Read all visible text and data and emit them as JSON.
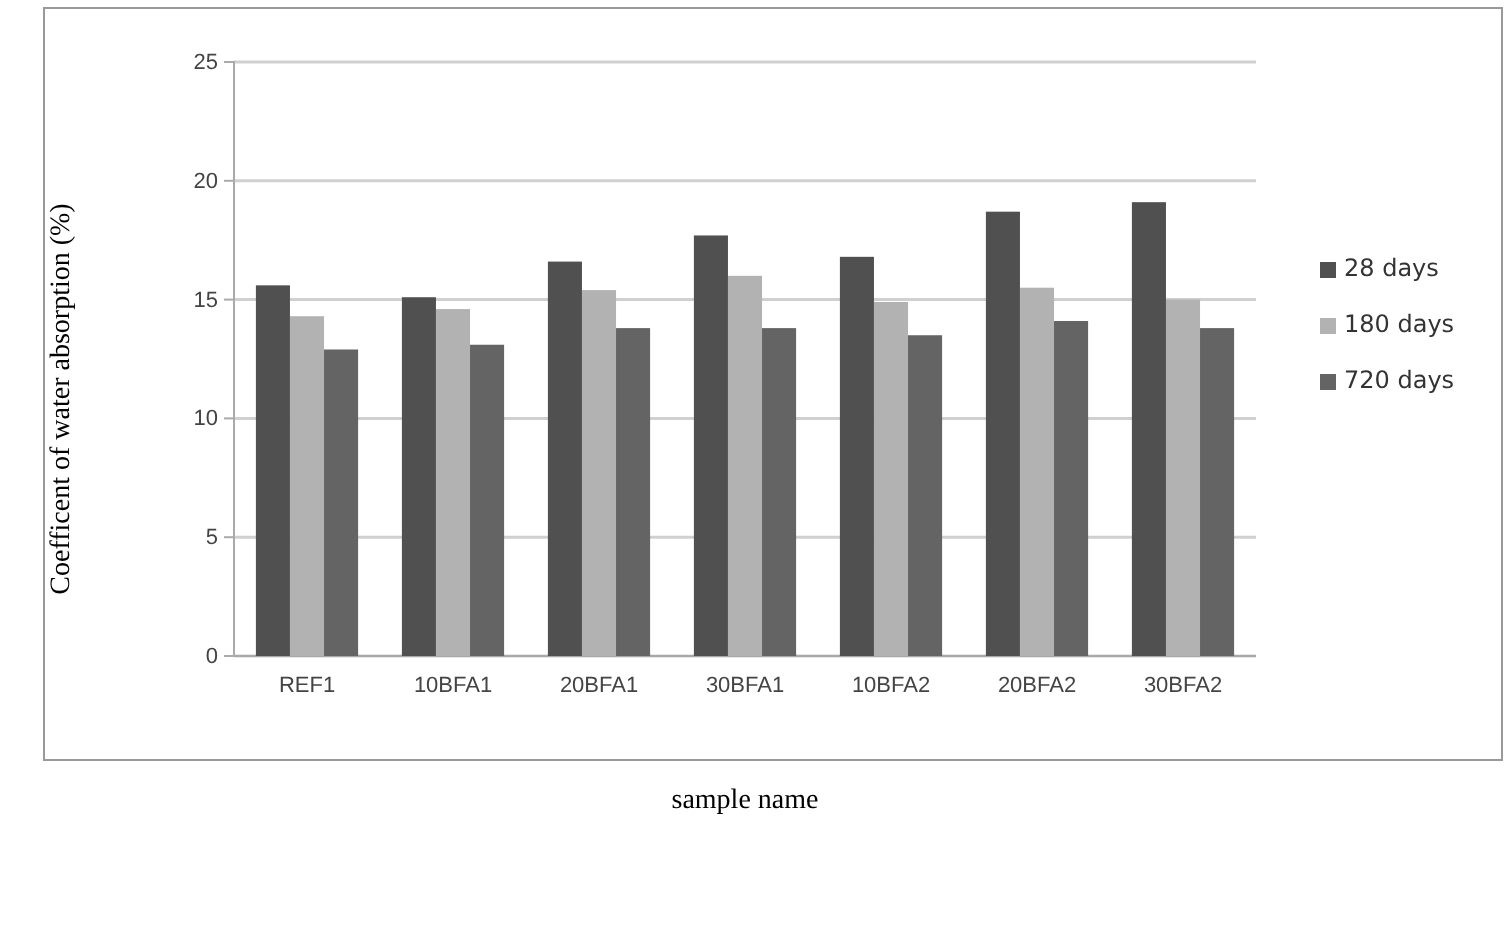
{
  "chart_data": {
    "type": "bar",
    "xlabel": "sample name",
    "ylabel": "Coefficent of water absorption (%)",
    "categories": [
      "REF1",
      "10BFA1",
      "20BFA1",
      "30BFA1",
      "10BFA2",
      "20BFA2",
      "30BFA2"
    ],
    "series": [
      {
        "name": "28 days",
        "color": "#505050",
        "values": [
          15.6,
          15.1,
          16.6,
          17.7,
          16.8,
          18.7,
          19.1
        ]
      },
      {
        "name": "180 days",
        "color": "#b2b2b2",
        "values": [
          14.3,
          14.6,
          15.4,
          16.0,
          14.9,
          15.5,
          15.0
        ]
      },
      {
        "name": "720 days",
        "color": "#646464",
        "values": [
          12.9,
          13.1,
          13.8,
          13.8,
          13.5,
          14.1,
          13.8
        ]
      }
    ],
    "ylim": [
      0,
      25
    ],
    "yticks": [
      0,
      5,
      10,
      15,
      20,
      25
    ],
    "grid": "y",
    "legend": "right"
  }
}
